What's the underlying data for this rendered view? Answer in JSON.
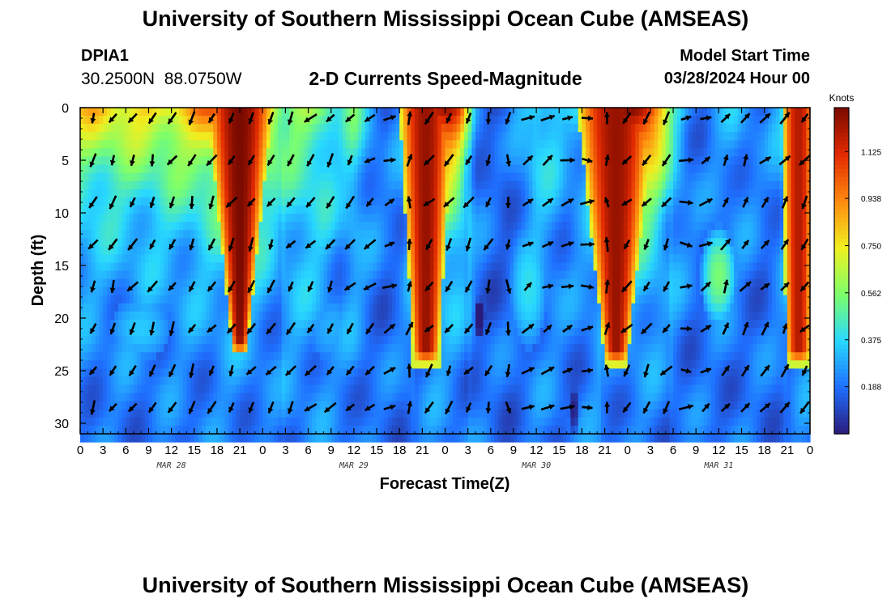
{
  "header": {
    "title": "University of Southern Mississippi Ocean Cube (AMSEAS)",
    "station_id": "DPIA1",
    "station_coords": "30.2500N  88.0750W",
    "subtitle": "2-D Currents Speed-Magnitude",
    "model_start_label": "Model Start Time",
    "model_start_value": "03/28/2024 Hour 00"
  },
  "footer": {
    "title": "University of Southern Mississippi Ocean Cube (AMSEAS)"
  },
  "chart_data": {
    "type": "heatmap",
    "title": "2-D Currents Speed-Magnitude",
    "xlabel": "Forecast Time(Z)",
    "ylabel": "Depth (ft)",
    "x_range_hours": [
      0,
      96
    ],
    "y_range_ft": [
      0,
      31
    ],
    "x_tick_labels": [
      "0",
      "3",
      "6",
      "9",
      "12",
      "15",
      "18",
      "21",
      "0",
      "3",
      "6",
      "9",
      "12",
      "15",
      "18",
      "21",
      "0",
      "3",
      "6",
      "9",
      "12",
      "15",
      "18",
      "21",
      "0",
      "3",
      "6",
      "9",
      "12",
      "15",
      "18",
      "21",
      "0"
    ],
    "y_ticks": [
      0,
      5,
      10,
      15,
      20,
      25,
      30
    ],
    "y_tick_labels": [
      "0",
      "5",
      "10",
      "15",
      "20",
      "25",
      "30"
    ],
    "date_labels": [
      {
        "hour": 12,
        "label": "MAR 28"
      },
      {
        "hour": 36,
        "label": "MAR 29"
      },
      {
        "hour": 60,
        "label": "MAR 30"
      },
      {
        "hour": 84,
        "label": "MAR 31"
      }
    ],
    "colorbar": {
      "unit": "Knots",
      "range": [
        0,
        1.3
      ],
      "tick_values": [
        0.188,
        0.375,
        0.562,
        0.75,
        0.938,
        1.125
      ],
      "tick_labels": [
        "0.188",
        "0.375",
        "0.562",
        "0.750",
        "0.938",
        "1.125"
      ],
      "colors": [
        "#2a1a7a",
        "#1f6fff",
        "#28d8ff",
        "#7dff6a",
        "#f0f020",
        "#ff8a10",
        "#e22a00",
        "#7a0a00"
      ]
    },
    "speed_model": {
      "surface_hours": [
        0,
        2,
        4,
        6,
        8,
        10,
        12,
        14,
        16,
        18,
        19,
        20,
        21,
        22,
        23,
        24,
        25,
        26,
        27,
        28,
        30,
        32,
        34,
        36,
        38,
        40,
        42,
        44,
        45,
        46,
        47,
        48,
        49,
        50,
        51,
        52,
        54,
        56,
        58,
        60,
        62,
        64,
        66,
        68,
        70,
        71,
        72,
        73,
        74,
        75,
        76,
        77,
        78,
        80,
        82,
        84,
        86,
        88,
        90,
        92,
        93,
        94,
        95,
        96
      ],
      "surface_speed_knots": [
        0.8,
        0.82,
        0.8,
        0.78,
        0.8,
        0.8,
        0.82,
        0.85,
        0.95,
        1.05,
        1.2,
        1.3,
        1.3,
        1.25,
        1.15,
        1.0,
        0.85,
        0.7,
        0.55,
        0.6,
        0.6,
        0.55,
        0.4,
        0.5,
        0.3,
        0.2,
        0.25,
        0.55,
        0.9,
        1.2,
        1.3,
        1.3,
        1.2,
        1.0,
        0.6,
        0.25,
        0.15,
        0.15,
        0.3,
        0.45,
        0.4,
        0.3,
        0.35,
        0.55,
        0.85,
        1.15,
        1.25,
        1.3,
        1.3,
        1.2,
        1.0,
        0.75,
        0.45,
        0.25,
        0.2,
        0.25,
        0.3,
        0.25,
        0.2,
        0.3,
        0.55,
        1.0,
        1.2,
        1.1
      ],
      "plumes": [
        {
          "center_hour": 21,
          "bottom_ft": 22,
          "top_half_width_h": 3.2,
          "bottom_half_width_h": 0.8,
          "peak_knots": 1.3
        },
        {
          "center_hour": 45.5,
          "bottom_ft": 23,
          "top_half_width_h": 2.6,
          "bottom_half_width_h": 1.3,
          "peak_knots": 1.25
        },
        {
          "center_hour": 70.5,
          "bottom_ft": 23,
          "top_half_width_h": 3.8,
          "bottom_half_width_h": 1.2,
          "peak_knots": 1.25
        },
        {
          "center_hour": 94.5,
          "bottom_ft": 23,
          "top_half_width_h": 1.6,
          "bottom_half_width_h": 1.2,
          "peak_knots": 1.2
        }
      ],
      "blobs": [
        {
          "center_hour": 84,
          "center_depth_ft": 16,
          "radius_h": 2.5,
          "radius_ft": 5,
          "peak_knots": 0.55
        },
        {
          "center_hour": 59,
          "center_depth_ft": 17,
          "radius_h": 2.5,
          "radius_ft": 6,
          "peak_knots": 0.4
        },
        {
          "center_hour": 8,
          "center_depth_ft": 21,
          "radius_h": 4,
          "radius_ft": 3,
          "peak_knots": 0.35
        },
        {
          "center_hour": 33,
          "center_depth_ft": 21,
          "radius_h": 3,
          "radius_ft": 3,
          "peak_knots": 0.3
        }
      ],
      "lows": [
        {
          "center_hour": 52.5,
          "center_depth_ft": 20,
          "radius_h": 0.8,
          "radius_ft": 2,
          "depth_knots": 0.3
        },
        {
          "center_hour": 65,
          "center_depth_ft": 29,
          "radius_h": 0.8,
          "radius_ft": 2.5,
          "depth_knots": 0.2
        }
      ]
    },
    "arrow_field": {
      "columns_hours": [
        1.7,
        4.3,
        6.9,
        9.5,
        12.1,
        14.7,
        17.3,
        19.9,
        22.5,
        25.1,
        27.7,
        30.3,
        32.9,
        35.5,
        38.1,
        40.7,
        43.3,
        45.9,
        48.5,
        51.1,
        53.7,
        56.3,
        58.9,
        61.5,
        64.1,
        66.7,
        69.3,
        71.9,
        74.5,
        77.1,
        79.7,
        82.3,
        84.9,
        87.5,
        90.1,
        92.7,
        95.3
      ],
      "rows_depth_ft": [
        1,
        5,
        9,
        13,
        17,
        21,
        25,
        28.5
      ],
      "direction_deg_by_column": [
        210,
        205,
        210,
        205,
        210,
        200,
        215,
        210,
        210,
        215,
        215,
        220,
        215,
        220,
        230,
        70,
        10,
        220,
        215,
        215,
        200,
        180,
        60,
        60,
        70,
        90,
        0,
        220,
        215,
        215,
        90,
        60,
        30,
        30,
        40,
        35,
        215
      ],
      "speed_knots_by_column": [
        0.8,
        0.8,
        0.8,
        0.8,
        0.8,
        0.9,
        1.1,
        1.3,
        1.2,
        0.8,
        0.6,
        0.6,
        0.5,
        0.4,
        0.3,
        0.3,
        0.9,
        1.3,
        1.2,
        0.7,
        0.2,
        0.2,
        0.4,
        0.4,
        0.3,
        0.5,
        0.9,
        1.3,
        1.3,
        0.9,
        0.3,
        0.3,
        0.3,
        0.2,
        0.3,
        0.6,
        1.1
      ]
    }
  }
}
